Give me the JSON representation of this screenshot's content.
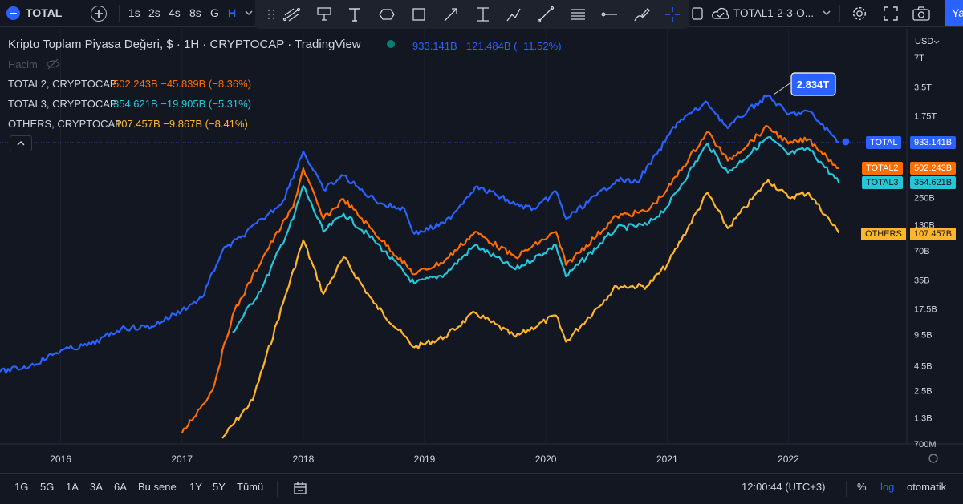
{
  "topbar": {
    "symbol": "TOTAL",
    "intervals": [
      "1s",
      "2s",
      "4s",
      "8s",
      "G",
      "H"
    ],
    "active_interval": "H",
    "layout_name": "TOTAL1-2-3-O...",
    "publish_label": "Ya"
  },
  "legend": {
    "main_title": "Kripto Toplam Piyasa Değeri, $ · 1H · CRYPTOCAP · TradingView",
    "main_values": "933.141B −121.484B (−11.52%)",
    "volume_label": "Hacim",
    "rows": [
      {
        "name": "TOTAL2, CRYPTOCAP",
        "values": "502.243B −45.839B (−8.36%)",
        "color": "#ff6d00"
      },
      {
        "name": "TOTAL3, CRYPTOCAP",
        "values": "354.621B −19.905B (−5.31%)",
        "color": "#26c6da"
      },
      {
        "name": "OTHERS, CRYPTOCAP",
        "values": "107.457B −9.867B (−8.41%)",
        "color": "#ffb62b"
      }
    ]
  },
  "price_scale": {
    "currency": "USD",
    "labels": [
      "7T",
      "3.5T",
      "1.75T",
      "250B",
      "130B",
      "70B",
      "35B",
      "17.5B",
      "9.5B",
      "4.5B",
      "2.5B",
      "1.3B",
      "700M"
    ]
  },
  "time_axis": {
    "labels": [
      "2016",
      "2017",
      "2018",
      "2019",
      "2020",
      "2021",
      "2022"
    ]
  },
  "price_labels": [
    {
      "name": "TOTAL",
      "value": "933.141B",
      "color": "#2962ff"
    },
    {
      "name": "TOTAL2",
      "value": "502.243B",
      "color": "#ff6d00"
    },
    {
      "name": "TOTAL3",
      "value": "354.621B",
      "color": "#26c6da"
    },
    {
      "name": "OTHERS",
      "value": "107.457B",
      "color": "#ffb62b"
    }
  ],
  "peak_callout": "2.834T",
  "bottombar": {
    "ranges": [
      "1G",
      "5G",
      "1A",
      "3A",
      "6A",
      "Bu sene",
      "1Y",
      "5Y",
      "Tümü"
    ],
    "clock": "12:00:44 (UTC+3)",
    "percent_label": "%",
    "log_label": "log",
    "auto_label": "otomatik"
  },
  "chart_data": {
    "type": "line",
    "title": "Kripto Toplam Piyasa Değeri, $ · 1H · CRYPTOCAP · TradingView",
    "yscale": "log",
    "ylim": [
      "700M",
      "7T"
    ],
    "xlim": [
      "2015-07",
      "2022-07"
    ],
    "series": [
      {
        "name": "TOTAL",
        "color": "#2962ff",
        "points": [
          [
            "2015-07",
            3.9
          ],
          [
            "2015-10",
            4.5
          ],
          [
            "2016-01",
            6.5
          ],
          [
            "2016-04",
            7.5
          ],
          [
            "2016-07",
            11
          ],
          [
            "2016-10",
            11.5
          ],
          [
            "2017-01",
            17
          ],
          [
            "2017-03",
            23
          ],
          [
            "2017-05",
            70
          ],
          [
            "2017-07",
            100
          ],
          [
            "2017-09",
            150
          ],
          [
            "2017-11",
            230
          ],
          [
            "2018-01",
            750
          ],
          [
            "2018-03",
            300
          ],
          [
            "2018-05",
            420
          ],
          [
            "2018-07",
            280
          ],
          [
            "2018-09",
            210
          ],
          [
            "2018-11",
            190
          ],
          [
            "2018-12",
            105
          ],
          [
            "2019-03",
            135
          ],
          [
            "2019-06",
            320
          ],
          [
            "2019-08",
            270
          ],
          [
            "2019-10",
            210
          ],
          [
            "2019-12",
            190
          ],
          [
            "2020-02",
            290
          ],
          [
            "2020-03",
            150
          ],
          [
            "2020-06",
            260
          ],
          [
            "2020-08",
            380
          ],
          [
            "2020-10",
            360
          ],
          [
            "2020-12",
            700
          ],
          [
            "2021-02",
            1500
          ],
          [
            "2021-05",
            2400
          ],
          [
            "2021-07",
            1300
          ],
          [
            "2021-09",
            2000
          ],
          [
            "2021-11",
            2834
          ],
          [
            "2022-01",
            1800
          ],
          [
            "2022-03",
            1950
          ],
          [
            "2022-06",
            933.141
          ]
        ]
      },
      {
        "name": "TOTAL2",
        "color": "#ff6d00",
        "points": [
          [
            "2017-01",
            0.9
          ],
          [
            "2017-04",
            2.5
          ],
          [
            "2017-06",
            15
          ],
          [
            "2017-09",
            60
          ],
          [
            "2017-12",
            200
          ],
          [
            "2018-01",
            500
          ],
          [
            "2018-03",
            150
          ],
          [
            "2018-05",
            240
          ],
          [
            "2018-08",
            110
          ],
          [
            "2018-12",
            40
          ],
          [
            "2019-03",
            55
          ],
          [
            "2019-06",
            110
          ],
          [
            "2019-10",
            60
          ],
          [
            "2020-02",
            110
          ],
          [
            "2020-03",
            50
          ],
          [
            "2020-08",
            160
          ],
          [
            "2020-11",
            180
          ],
          [
            "2021-01",
            300
          ],
          [
            "2021-05",
            1200
          ],
          [
            "2021-07",
            600
          ],
          [
            "2021-11",
            1350
          ],
          [
            "2022-01",
            900
          ],
          [
            "2022-03",
            1000
          ],
          [
            "2022-06",
            502.243
          ]
        ]
      },
      {
        "name": "TOTAL3",
        "color": "#26c6da",
        "points": [
          [
            "2017-06",
            10
          ],
          [
            "2017-09",
            30
          ],
          [
            "2017-12",
            150
          ],
          [
            "2018-01",
            330
          ],
          [
            "2018-03",
            110
          ],
          [
            "2018-05",
            170
          ],
          [
            "2018-08",
            90
          ],
          [
            "2018-12",
            32
          ],
          [
            "2019-03",
            40
          ],
          [
            "2019-06",
            80
          ],
          [
            "2019-10",
            45
          ],
          [
            "2020-02",
            80
          ],
          [
            "2020-03",
            38
          ],
          [
            "2020-08",
            120
          ],
          [
            "2020-11",
            130
          ],
          [
            "2021-01",
            200
          ],
          [
            "2021-05",
            900
          ],
          [
            "2021-07",
            450
          ],
          [
            "2021-11",
            1050
          ],
          [
            "2022-01",
            700
          ],
          [
            "2022-03",
            800
          ],
          [
            "2022-06",
            354.621
          ]
        ]
      },
      {
        "name": "OTHERS",
        "color": "#ffb62b",
        "points": [
          [
            "2017-05",
            0.8
          ],
          [
            "2017-08",
            2
          ],
          [
            "2017-11",
            20
          ],
          [
            "2018-01",
            90
          ],
          [
            "2018-03",
            25
          ],
          [
            "2018-05",
            60
          ],
          [
            "2018-08",
            20
          ],
          [
            "2018-12",
            7
          ],
          [
            "2019-03",
            9
          ],
          [
            "2019-06",
            16
          ],
          [
            "2019-10",
            9
          ],
          [
            "2020-02",
            15
          ],
          [
            "2020-03",
            8
          ],
          [
            "2020-08",
            30
          ],
          [
            "2020-11",
            30
          ],
          [
            "2021-01",
            50
          ],
          [
            "2021-05",
            280
          ],
          [
            "2021-07",
            120
          ],
          [
            "2021-11",
            380
          ],
          [
            "2022-01",
            250
          ],
          [
            "2022-03",
            280
          ],
          [
            "2022-06",
            107.457
          ]
        ]
      }
    ]
  }
}
